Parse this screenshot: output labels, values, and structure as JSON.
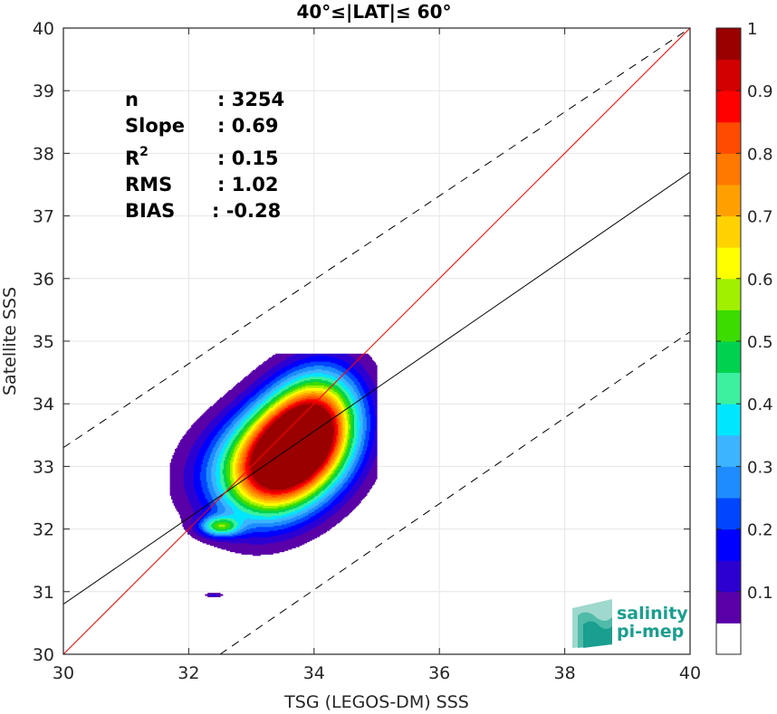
{
  "chart_data": {
    "type": "contour",
    "title": "40°≤|LAT|≤ 60°",
    "xlabel": "TSG (LEGOS-DM) SSS",
    "ylabel": "Satellite SSS",
    "xlim": [
      30,
      40
    ],
    "ylim": [
      30,
      40
    ],
    "xticks": [
      30,
      32,
      34,
      36,
      38,
      40
    ],
    "yticks": [
      30,
      31,
      32,
      33,
      34,
      35,
      36,
      37,
      38,
      39,
      40
    ],
    "grid": true,
    "stats": {
      "n_label": "n",
      "n_value": ": 3254",
      "slope_label": "Slope",
      "slope_value": ": 0.69",
      "r2_label": "R",
      "r2_sup": "2",
      "r2_value": ": 0.15",
      "rms_label": "RMS",
      "rms_value": ": 1.02",
      "bias_label": "BIAS",
      "bias_value": ": -0.28"
    },
    "lines": {
      "identity": {
        "points": [
          [
            30,
            30
          ],
          [
            40,
            40
          ]
        ],
        "color": "#ff0000"
      },
      "regression": {
        "points": [
          [
            30,
            30.8
          ],
          [
            40,
            37.7
          ]
        ],
        "color": "#000000"
      },
      "upper_bound": {
        "points": [
          [
            30,
            33.3
          ],
          [
            40,
            40.0
          ]
        ],
        "color": "#000000",
        "dash": true
      },
      "lower_bound": {
        "points": [
          [
            32.5,
            30
          ],
          [
            40,
            35.15
          ]
        ],
        "color": "#000000",
        "dash": true
      }
    },
    "density_peaks": [
      {
        "center": [
          33.65,
          33.3
        ],
        "peak_level": 1.0
      },
      {
        "center": [
          32.5,
          32.05
        ],
        "peak_level": 0.4
      },
      {
        "center": [
          32.5,
          30.95
        ],
        "peak_level": 0.1
      }
    ],
    "colorbar": {
      "min": 0,
      "max": 1,
      "ticks": [
        0.1,
        0.2,
        0.3,
        0.4,
        0.5,
        0.6,
        0.7,
        0.8,
        0.9,
        1
      ],
      "tick_labels": [
        "0.1",
        "0.2",
        "0.3",
        "0.4",
        "0.5",
        "0.6",
        "0.7",
        "0.8",
        "0.9",
        "1"
      ],
      "colors": [
        "#ffffff",
        "#5a00a8",
        "#2d00d2",
        "#0000ff",
        "#0046ff",
        "#1e8cff",
        "#3cb4ff",
        "#00e6ff",
        "#3cf0a0",
        "#00d250",
        "#3cdc00",
        "#a0f000",
        "#ffff00",
        "#ffd200",
        "#ffa000",
        "#ff7800",
        "#ff4b00",
        "#ff0000",
        "#d20000",
        "#9b0000"
      ]
    }
  },
  "logo": {
    "line1": "salinity",
    "line2": "pi-mep",
    "color": "#1a9e8f"
  }
}
